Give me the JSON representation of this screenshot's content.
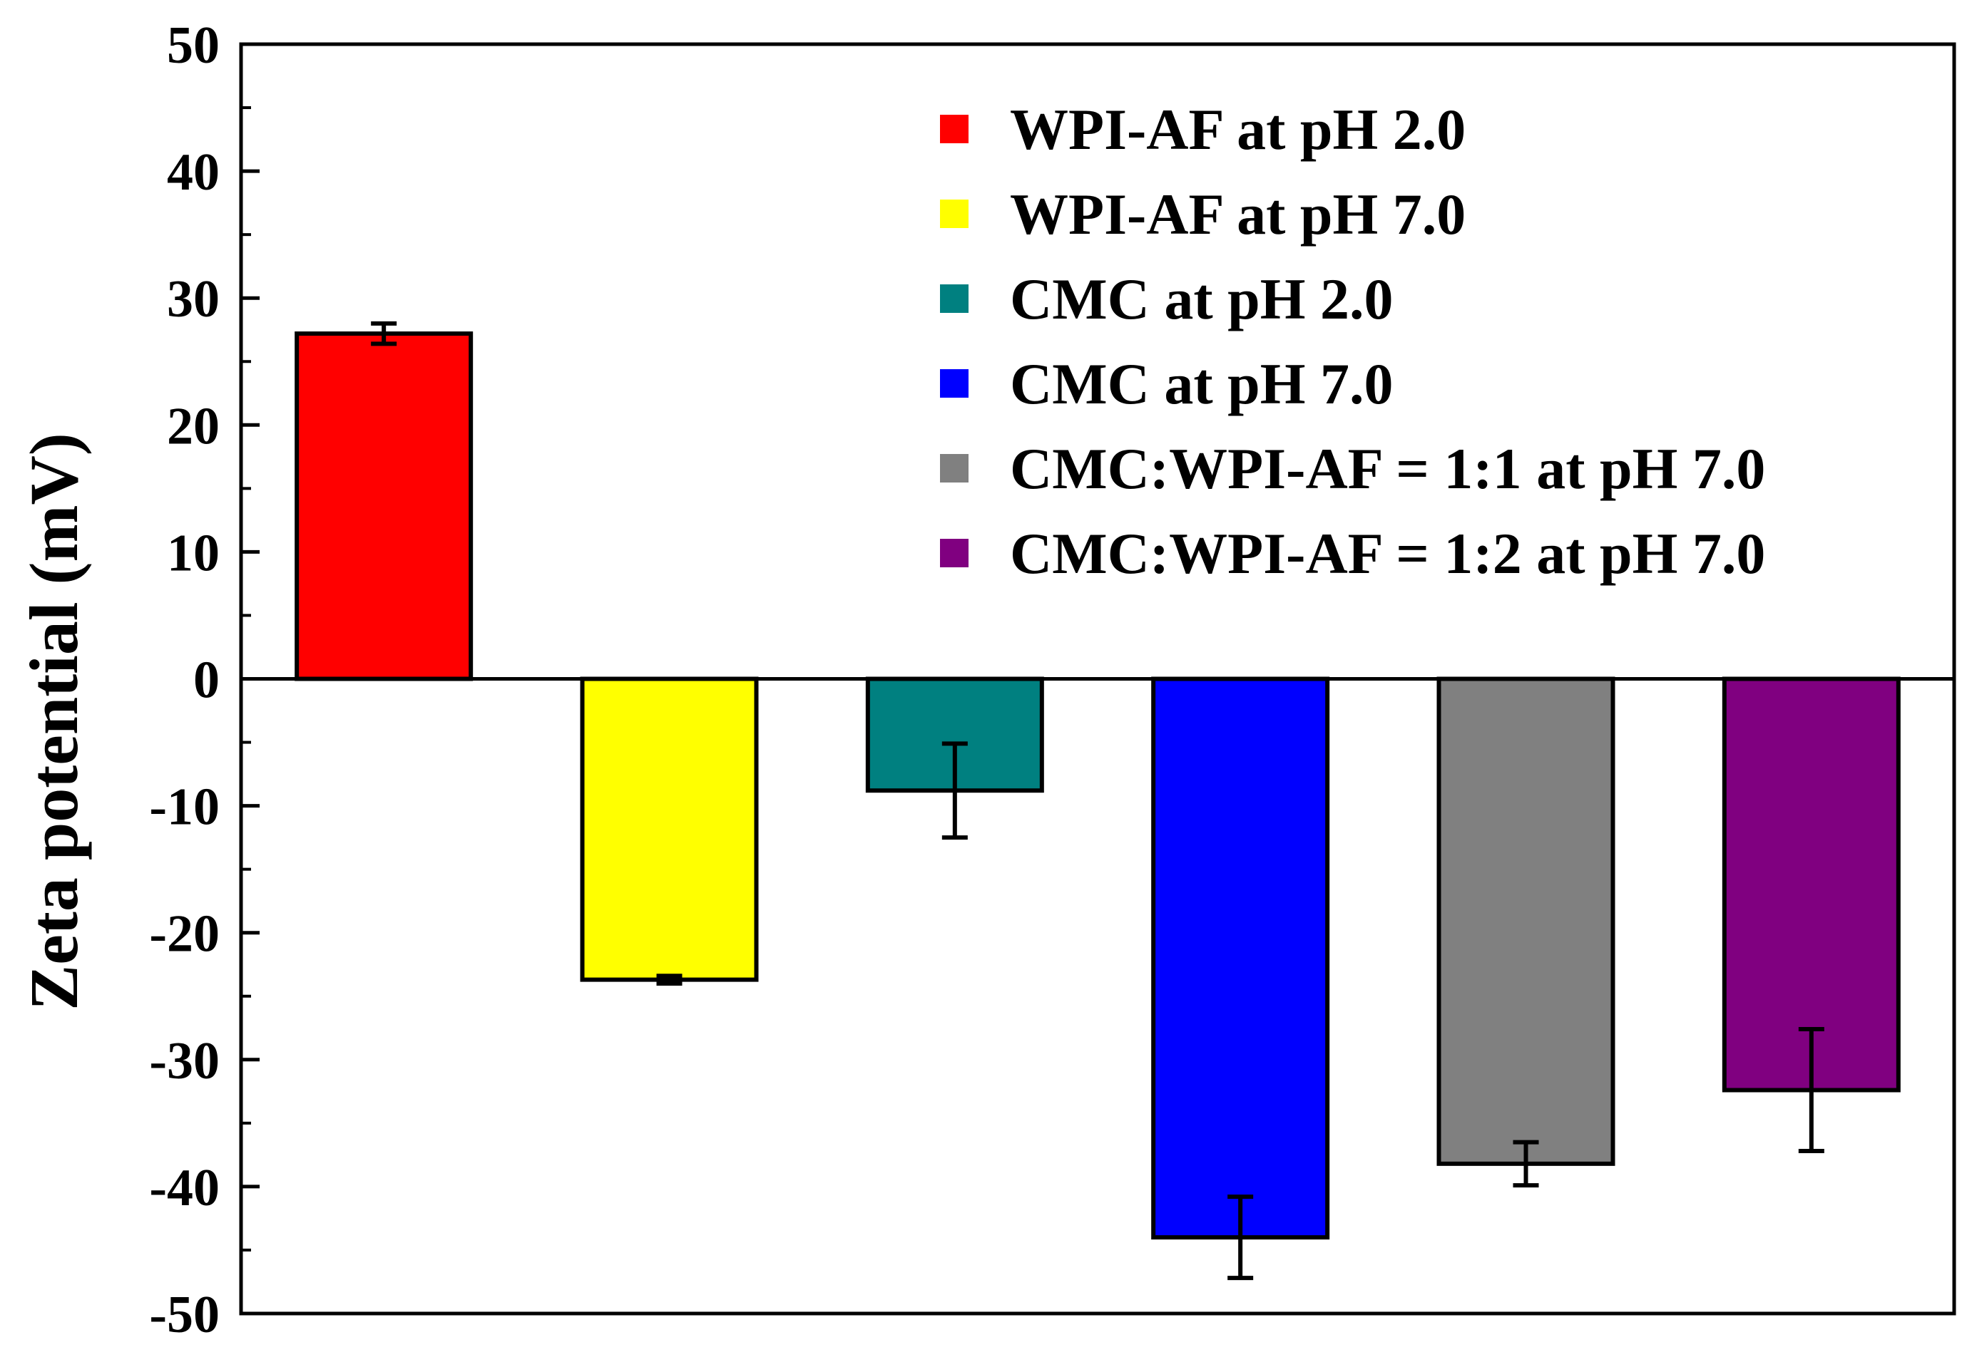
{
  "chart_data": {
    "type": "bar",
    "title": "",
    "xlabel": "",
    "ylabel": "Zeta potential (mV)",
    "ylim": [
      -50,
      50
    ],
    "yticks": [
      "50",
      "40",
      "30",
      "20",
      "10",
      "0",
      "-10",
      "-20",
      "-30",
      "-40",
      "-50"
    ],
    "grid": false,
    "legend_position": "top-right",
    "categories": [
      "WPI-AF at pH 2.0",
      "WPI-AF at pH 7.0",
      "CMC at pH 2.0",
      "CMC at pH 7.0",
      "CMC:WPI-AF = 1:1 at pH 7.0",
      "CMC:WPI-AF = 1:2 at pH 7.0"
    ],
    "values": [
      27.2,
      -23.7,
      -8.8,
      -44.0,
      -38.2,
      -32.4
    ],
    "errors": [
      0.8,
      0.3,
      3.7,
      3.2,
      1.7,
      4.8
    ],
    "colors": [
      "#ff0000",
      "#ffff00",
      "#008080",
      "#0000ff",
      "#808080",
      "#800080"
    ]
  }
}
